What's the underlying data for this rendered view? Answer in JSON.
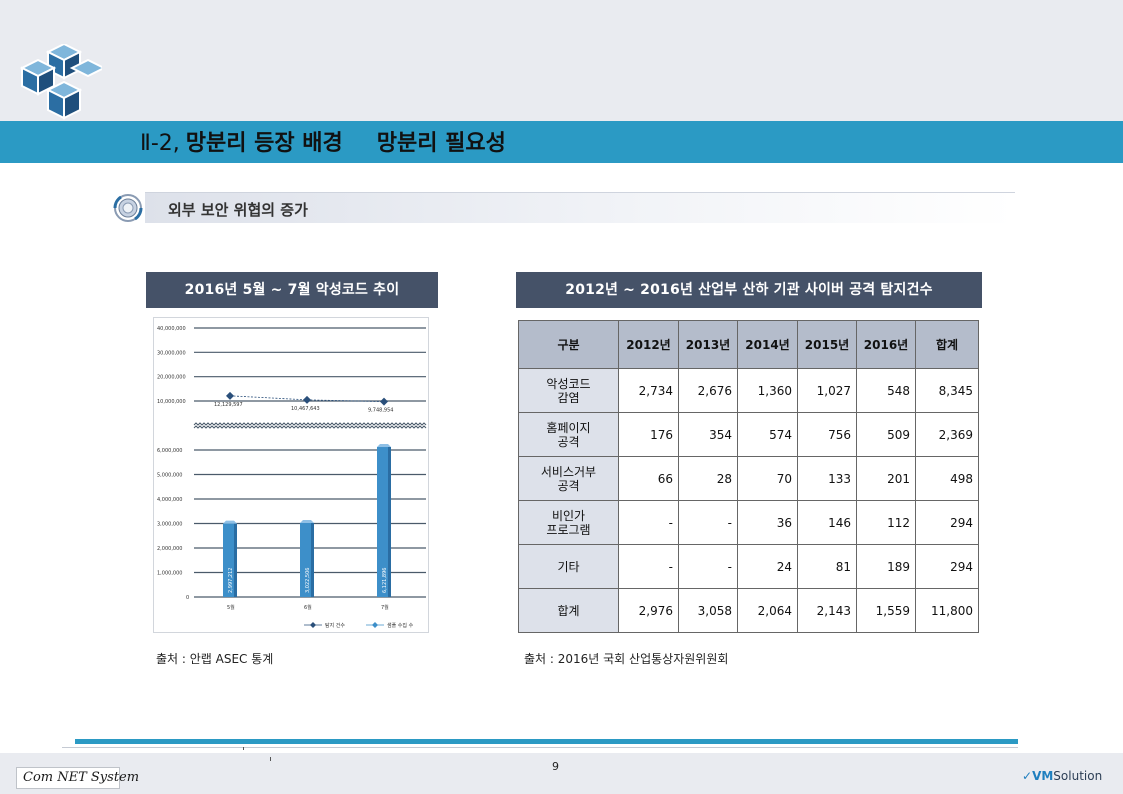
{
  "header": {
    "title_num": "Ⅱ-2,",
    "title_main": "망분리 등장 배경",
    "title_sub": "망분리 필요성"
  },
  "section": {
    "heading": "외부 보안 위협의 증가"
  },
  "left_panel": {
    "heading": "2016년 5월 ~ 7월  악성코드 추이",
    "source": "출처 : 안랩 ASEC 통계"
  },
  "right_panel": {
    "heading": "2012년 ~ 2016년 산업부 산하 기관 사이버 공격 탐지건수",
    "source": "출처 : 2016년 국회 산업통상자원위원회",
    "table": {
      "headers": [
        "구분",
        "2012년",
        "2013년",
        "2014년",
        "2015년",
        "2016년",
        "합계"
      ],
      "rows": [
        {
          "label": "악성코드\n감염",
          "values": [
            "2,734",
            "2,676",
            "1,360",
            "1,027",
            "548",
            "8,345"
          ]
        },
        {
          "label": "홈페이지\n공격",
          "values": [
            "176",
            "354",
            "574",
            "756",
            "509",
            "2,369"
          ]
        },
        {
          "label": "서비스거부\n공격",
          "values": [
            "66",
            "28",
            "70",
            "133",
            "201",
            "498"
          ]
        },
        {
          "label": "비인가\n프로그램",
          "values": [
            "-",
            "-",
            "36",
            "146",
            "112",
            "294"
          ]
        },
        {
          "label": "기타",
          "values": [
            "-",
            "-",
            "24",
            "81",
            "189",
            "294"
          ]
        },
        {
          "label": "합계",
          "values": [
            "2,976",
            "3,058",
            "2,064",
            "2,143",
            "1,559",
            "11,800"
          ]
        }
      ]
    }
  },
  "chart_data": {
    "type": "bar",
    "categories": [
      "5월",
      "6월",
      "7월"
    ],
    "series": [
      {
        "name": "탐지 건수",
        "values": [
          12129597,
          10467643,
          9748954
        ],
        "style": "line"
      },
      {
        "name": "샘플 수집 수",
        "values": [
          2997212,
          3022506,
          6121896
        ],
        "style": "bar"
      }
    ],
    "value_labels_line": [
      "12,129,597",
      "10,467,643",
      "9,748,954"
    ],
    "value_labels_bar": [
      "2,997,212",
      "3,022,506",
      "6,121,896"
    ],
    "upper_axis_ticks": [
      "40,000,000",
      "30,000,000",
      "20,000,000",
      "10,000,000"
    ],
    "lower_axis_ticks": [
      "6,000,000",
      "5,000,000",
      "4,000,000",
      "3,000,000",
      "2,000,000",
      "1,000,000",
      "0"
    ],
    "upper_ylim": [
      10000000,
      40000000
    ],
    "lower_ylim": [
      0,
      6000000
    ],
    "axis_break": true,
    "legend_position": "bottom-right",
    "colors": {
      "bar": "#3d8fc9",
      "line": "#2a4f7a",
      "grid": "#4a5a6a"
    }
  },
  "footer": {
    "page_number": "9",
    "company_left": "Com NET System",
    "company_right_v": "VM",
    "company_right_rest": "Solution"
  }
}
